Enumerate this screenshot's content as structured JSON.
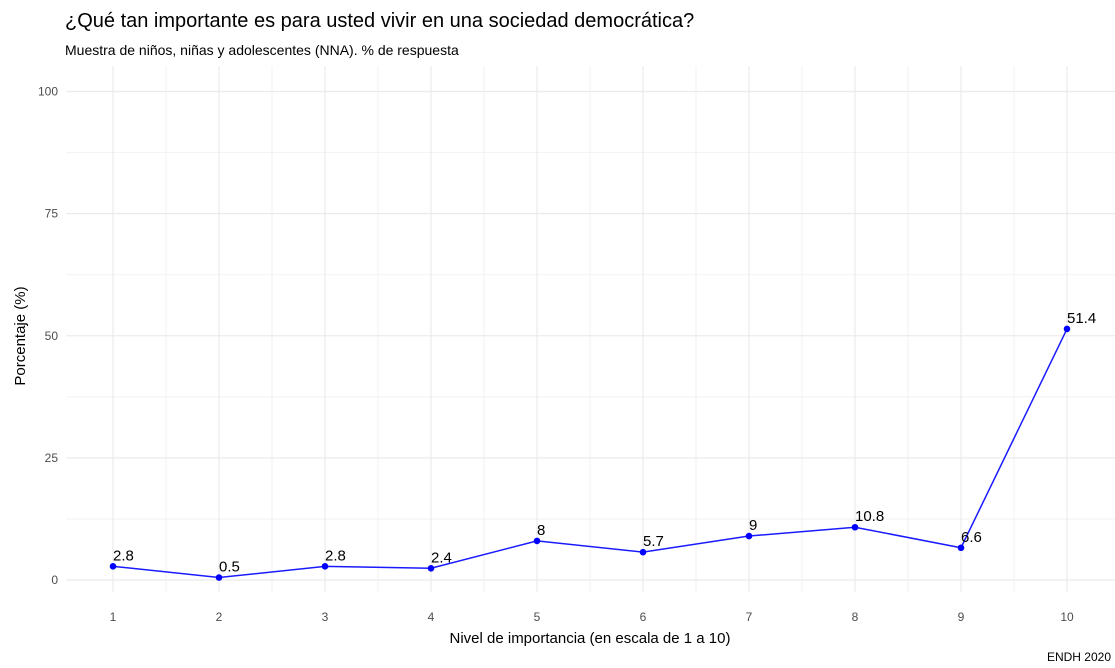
{
  "chart_data": {
    "type": "line",
    "title": "¿Qué tan importante es para usted vivir en una sociedad democrática?",
    "subtitle": "Muestra de niños, niñas y adolescentes (NNA). % de respuesta",
    "caption": "ENDH 2020",
    "xlabel": "Nivel de importancia (en escala de 1 a 10)",
    "ylabel": "Porcentaje (%)",
    "x": [
      1,
      2,
      3,
      4,
      5,
      6,
      7,
      8,
      9,
      10
    ],
    "y": [
      2.8,
      0.5,
      2.8,
      2.4,
      8,
      5.7,
      9,
      10.8,
      6.6,
      51.4
    ],
    "data_labels": [
      "2.8",
      "0.5",
      "2.8",
      "2.4",
      "8",
      "5.7",
      "9",
      "10.8",
      "6.6",
      "51.4"
    ],
    "xticks": [
      "1",
      "2",
      "3",
      "4",
      "5",
      "6",
      "7",
      "8",
      "9",
      "10"
    ],
    "yticks": [
      "0",
      "25",
      "50",
      "75",
      "100"
    ],
    "ylim": [
      0,
      100
    ],
    "grid": true,
    "line_color": "#1a1aff",
    "point_color": "#0000ff"
  }
}
